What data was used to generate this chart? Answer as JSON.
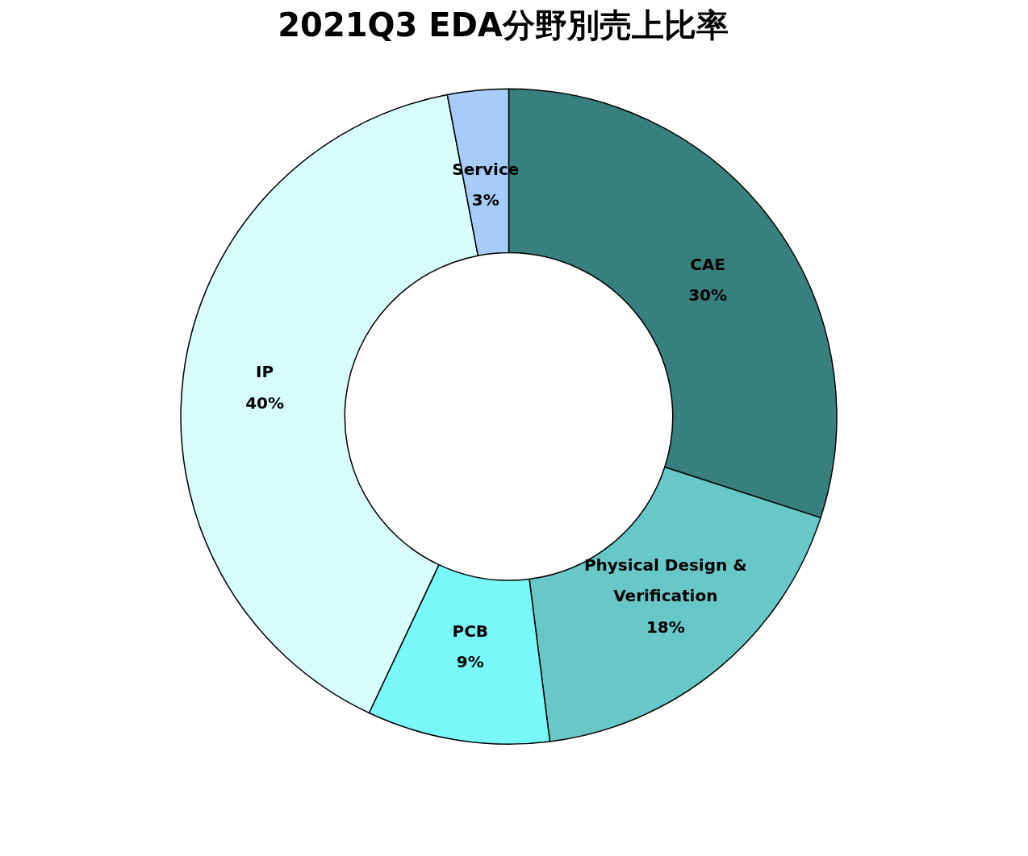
{
  "chart_data": {
    "type": "donut",
    "title": "2021Q3  EDA分野別売上比率",
    "categories": [
      "CAE",
      "Physical Design & Verification",
      "PCB",
      "IP",
      "Service"
    ],
    "values": [
      30,
      18,
      9,
      40,
      3
    ],
    "value_labels": [
      "30%",
      "18%",
      "9%",
      "40%",
      "3%"
    ],
    "colors": [
      "#38807e",
      "#68c8c8",
      "#78f8f8",
      "#d8fcfc",
      "#a8ccf8"
    ]
  }
}
